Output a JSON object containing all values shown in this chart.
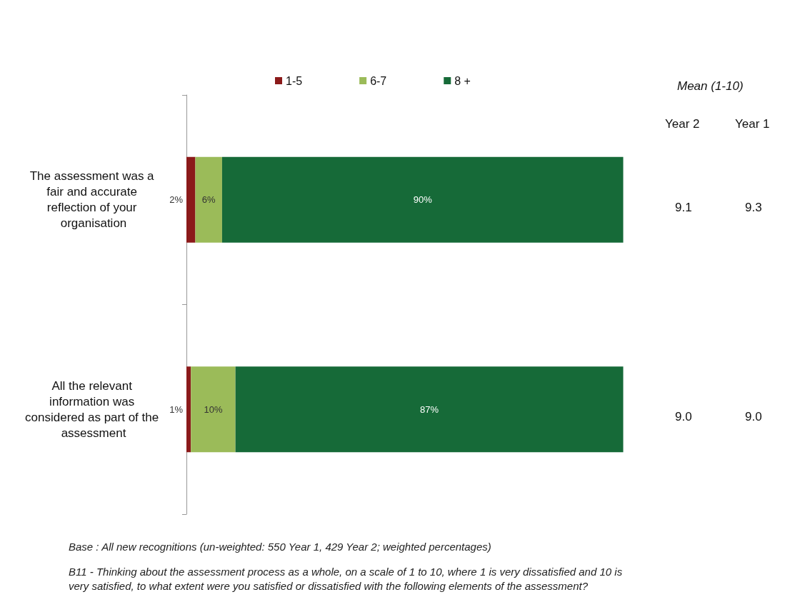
{
  "chart_data": {
    "type": "bar",
    "orientation": "horizontal",
    "stacked": true,
    "categories": [
      "The assessment was a fair and accurate reflection of your organisation",
      "All the relevant information was considered as part of the assessment"
    ],
    "series": [
      {
        "name": "1-5",
        "color": "#8b1a1a",
        "values": [
          2,
          1
        ],
        "value_labels": [
          "2%",
          "1%"
        ]
      },
      {
        "name": "6-7",
        "color": "#9bbb59",
        "values": [
          6,
          10
        ],
        "value_labels": [
          "6%",
          "10%"
        ]
      },
      {
        "name": "8 +",
        "color": "#166a38",
        "values": [
          90,
          87
        ],
        "value_labels": [
          "90%",
          "87%"
        ]
      }
    ],
    "legend": "top",
    "grid": false,
    "annotations": [
      "Mean (1-10)",
      "Year 2",
      "Year 1",
      "9.1",
      "9.3",
      "9.0",
      "9.0",
      "Base : All new recognitions (un-weighted: 550 Year 1, 429 Year 2; weighted percentages)",
      "B11 - Thinking about the assessment process as a whole, on a scale of 1 to 10, where 1 is very dissatisfied and 10 is very satisfied, to what extent were you satisfied or dissatisfied with the following elements of the assessment?"
    ]
  }
}
